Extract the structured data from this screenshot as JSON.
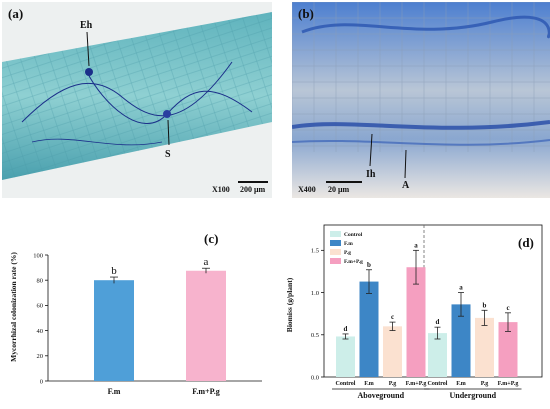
{
  "panel_a": {
    "label": "(a)",
    "annotations": [
      {
        "text": "Eh"
      },
      {
        "text": "S"
      }
    ],
    "magnification": "X100",
    "scale_bar": "200 μm",
    "colors": {
      "background": "#4aa7b5",
      "root": "#7fc4c8",
      "hyphae": "#1b2f8a",
      "edge": "#e8ecec"
    }
  },
  "panel_b": {
    "label": "(b)",
    "annotations": [
      {
        "text": "Ih"
      },
      {
        "text": "A"
      }
    ],
    "magnification": "X400",
    "scale_bar": "20 μm",
    "colors": {
      "stain": "#3b6fc4",
      "cells": "#c5cfd8",
      "bottom": "#eae6e2"
    }
  },
  "chart_data": [
    {
      "type": "bar",
      "panel_label": "(c)",
      "categories": [
        "F.m",
        "F.m+P.g"
      ],
      "values": [
        80,
        87.5
      ],
      "errors": [
        2.5,
        2.0
      ],
      "letters": [
        "b",
        "a"
      ],
      "colors": [
        "#4f9fd8",
        "#f7b3cd"
      ],
      "ylabel": "Mycorrhizal colonization rate (%)",
      "ylim": [
        0,
        100
      ],
      "yticks": [
        "0",
        "20",
        "40",
        "60",
        "80",
        "100"
      ]
    },
    {
      "type": "bar",
      "panel_label": "(d)",
      "ylabel": "Biomiss (g/plant)",
      "ylim": [
        0,
        1.8
      ],
      "yticks": [
        "0.0",
        "0.5",
        "1.0",
        "1.5"
      ],
      "legend": [
        "Control",
        "F.m",
        "P.g",
        "F.m+P.g"
      ],
      "legend_placement": "top-left",
      "colors": [
        "#cdeee9",
        "#3d86c6",
        "#fbe1d0",
        "#f59fc0"
      ],
      "groups": [
        {
          "name": "Aboveground",
          "categories": [
            "Control",
            "F.m",
            "P.g",
            "F.m+P.g"
          ],
          "values": [
            0.48,
            1.13,
            0.6,
            1.3
          ],
          "errors": [
            0.03,
            0.14,
            0.05,
            0.2
          ],
          "letters": [
            "d",
            "b",
            "c",
            "a"
          ]
        },
        {
          "name": "Underground",
          "categories": [
            "Control",
            "F.m",
            "P.g",
            "F.m+P.g"
          ],
          "values": [
            0.52,
            0.86,
            0.7,
            0.65
          ],
          "errors": [
            0.07,
            0.14,
            0.09,
            0.11
          ],
          "letters": [
            "d",
            "a",
            "b",
            "c"
          ]
        }
      ]
    }
  ]
}
